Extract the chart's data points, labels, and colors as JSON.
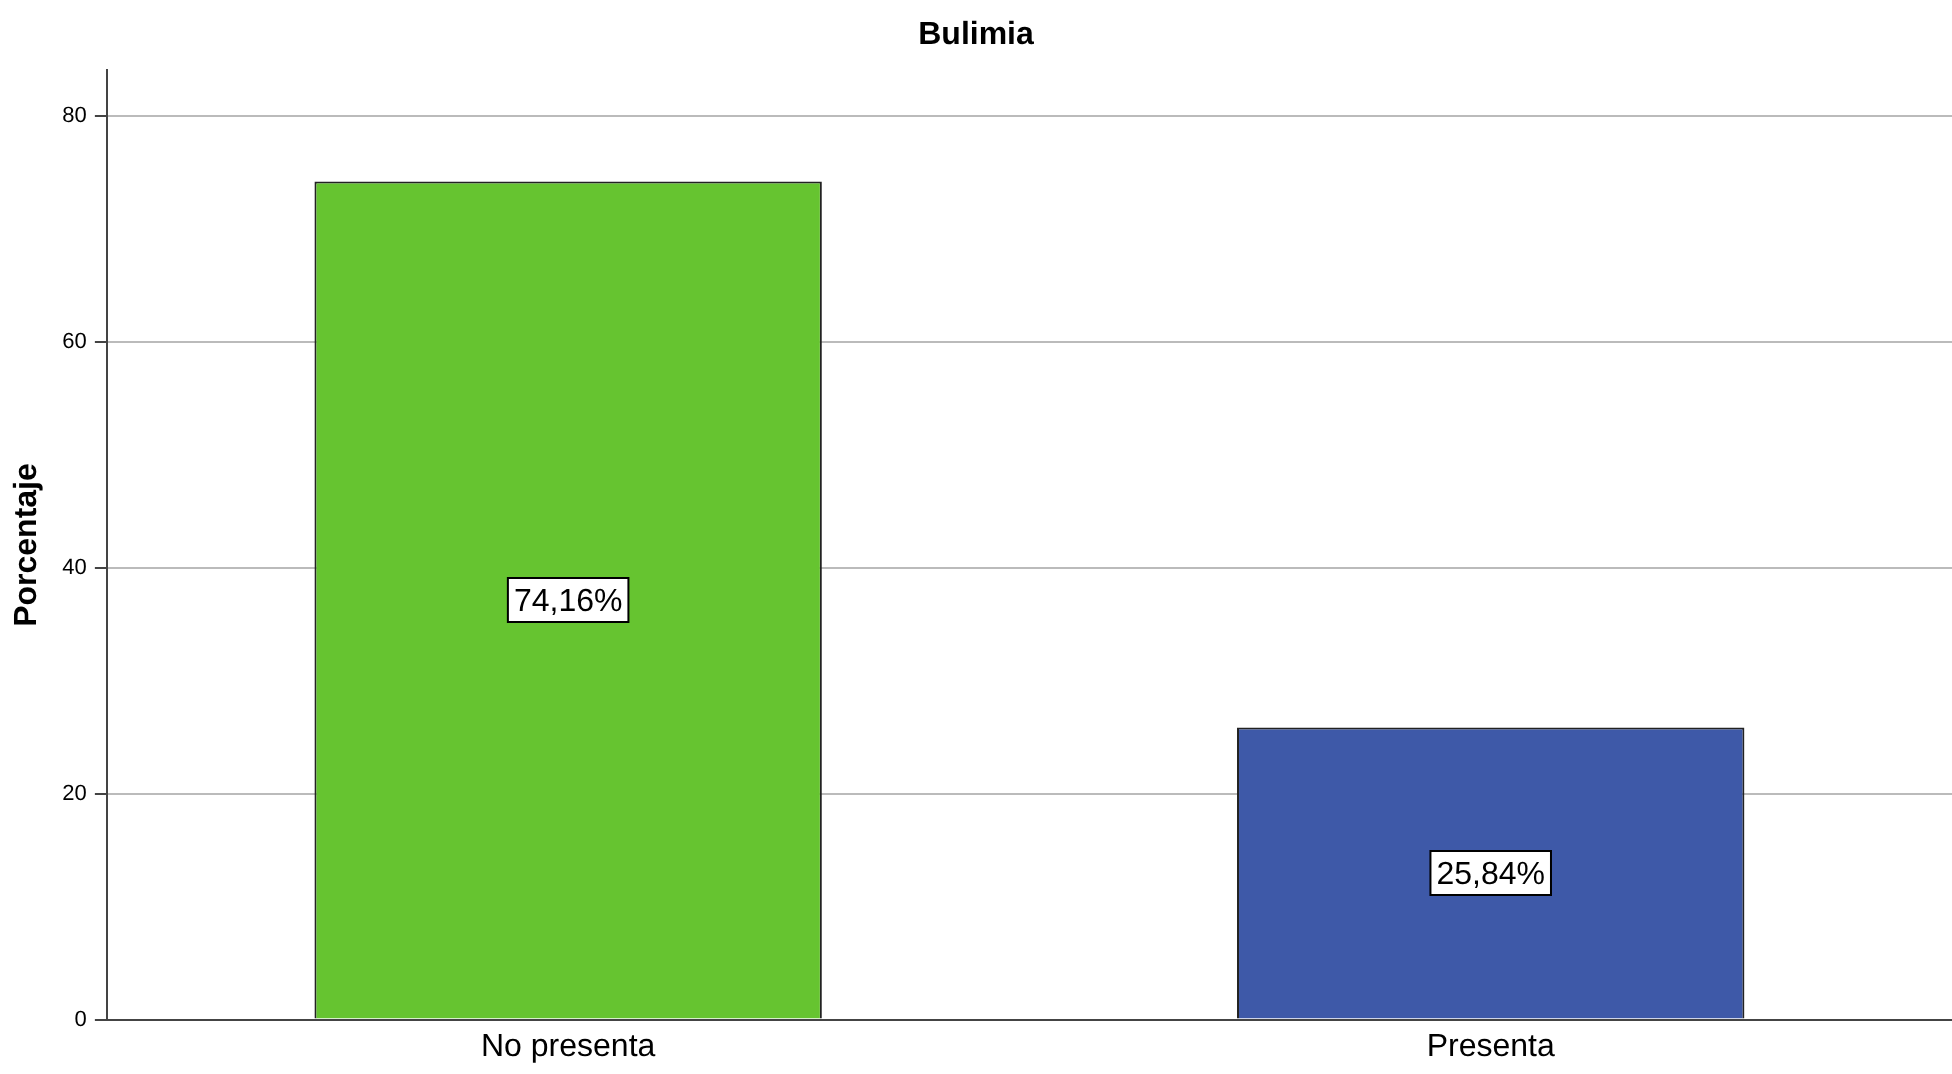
{
  "chart_data": {
    "type": "bar",
    "title": "Bulimia",
    "ylabel": "Porcentaje",
    "categories": [
      "No presenta",
      "Presenta"
    ],
    "values": [
      74.16,
      25.84
    ],
    "colors": [
      "#66c430",
      "#3e59a8"
    ],
    "value_labels": [
      "74,16%",
      "25,84%"
    ],
    "ylim": [
      0,
      84
    ],
    "yticks": [
      0,
      20,
      40,
      60,
      80
    ],
    "grid": "y",
    "legend": false
  }
}
